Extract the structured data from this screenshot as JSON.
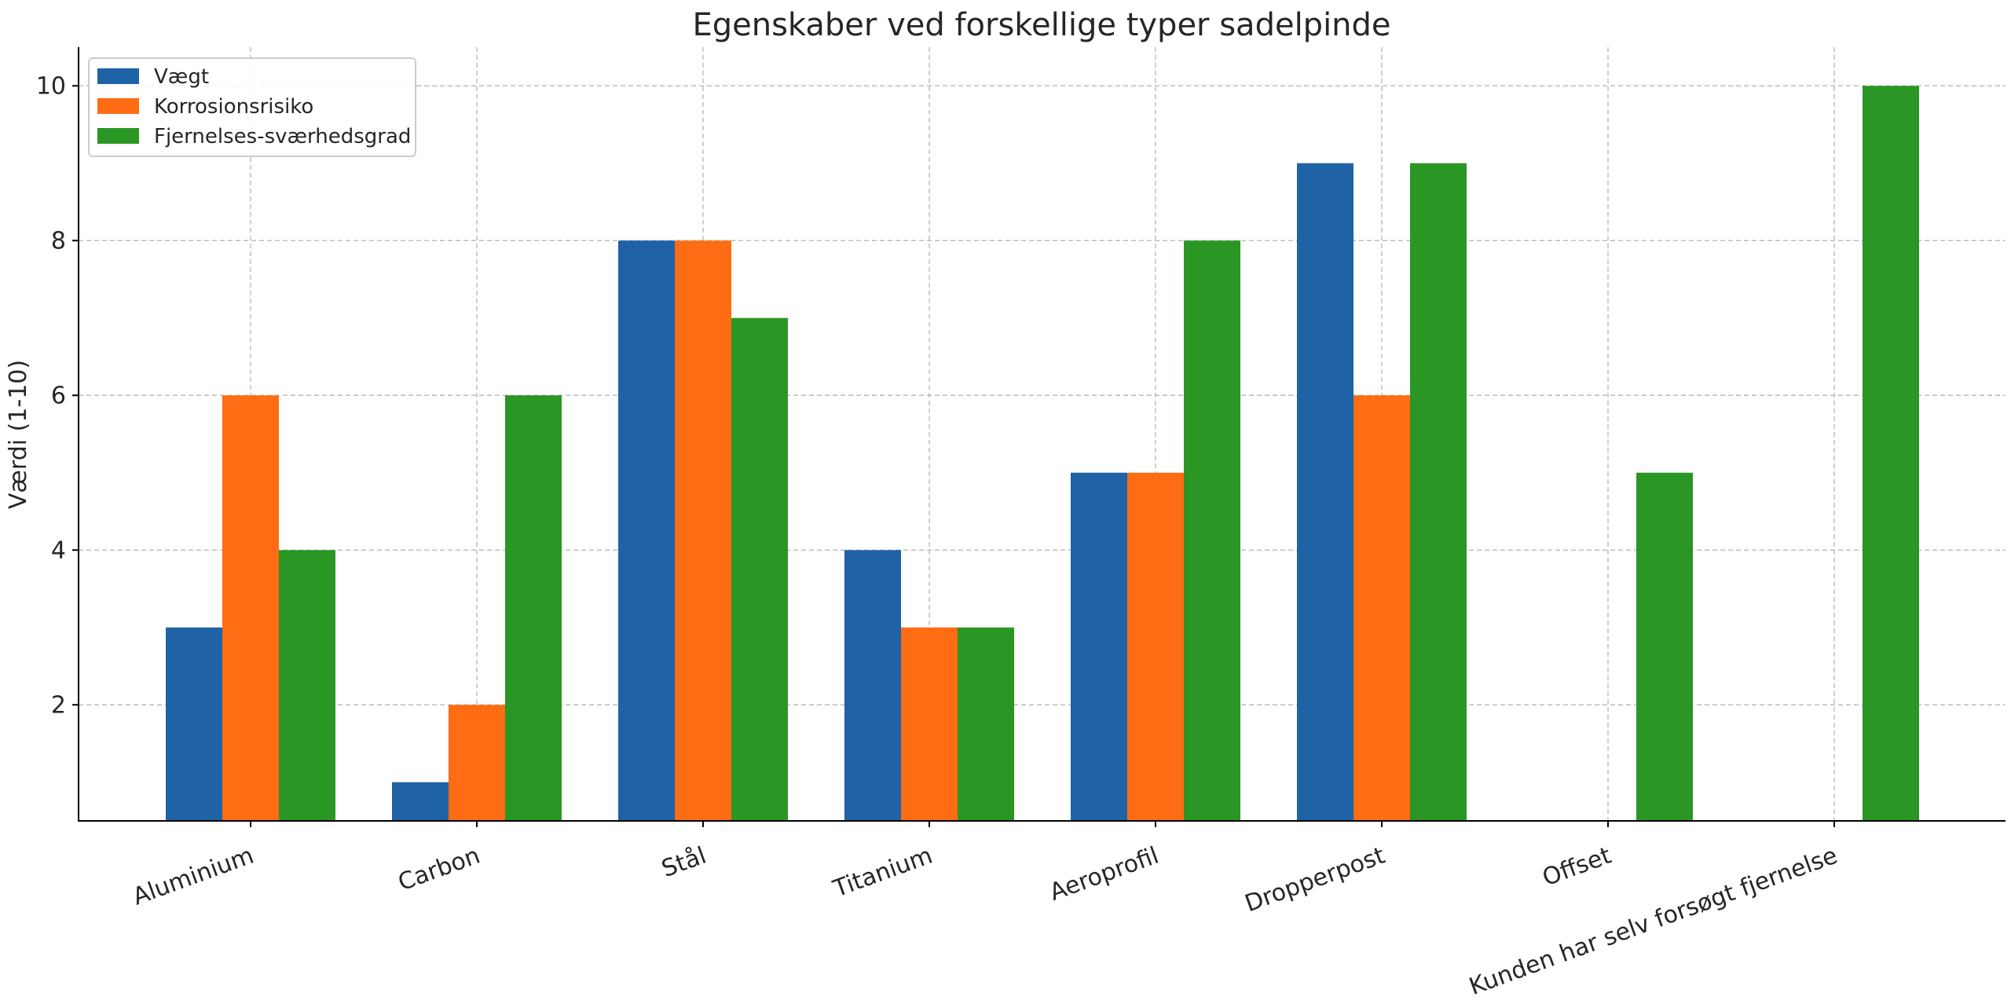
{
  "chart_data": {
    "type": "bar",
    "title": "Egenskaber ved forskellige typer sadelpinde",
    "xlabel": "",
    "ylabel": "Værdi (1-10)",
    "ylim": [
      0.5,
      10.5
    ],
    "yticks": [
      2,
      4,
      6,
      8,
      10
    ],
    "grid": true,
    "legend_position": "top-left",
    "categories": [
      "Aluminium",
      "Carbon",
      "Stål",
      "Titanium",
      "Aeroprofil",
      "Dropperpost",
      "Offset",
      "Kunden har selv forsøgt fjernelse"
    ],
    "series": [
      {
        "name": "Vægt",
        "color": "#1f62a5",
        "values": [
          3,
          1,
          8,
          4,
          5,
          9,
          0,
          0
        ]
      },
      {
        "name": "Korrosionsrisiko",
        "color": "#fe6c13",
        "values": [
          6,
          2,
          8,
          3,
          5,
          6,
          0,
          0
        ]
      },
      {
        "name": "Fjernelses-sværhedsgrad",
        "color": "#2a9624",
        "values": [
          4,
          6,
          7,
          3,
          8,
          9,
          5,
          10
        ]
      }
    ]
  }
}
